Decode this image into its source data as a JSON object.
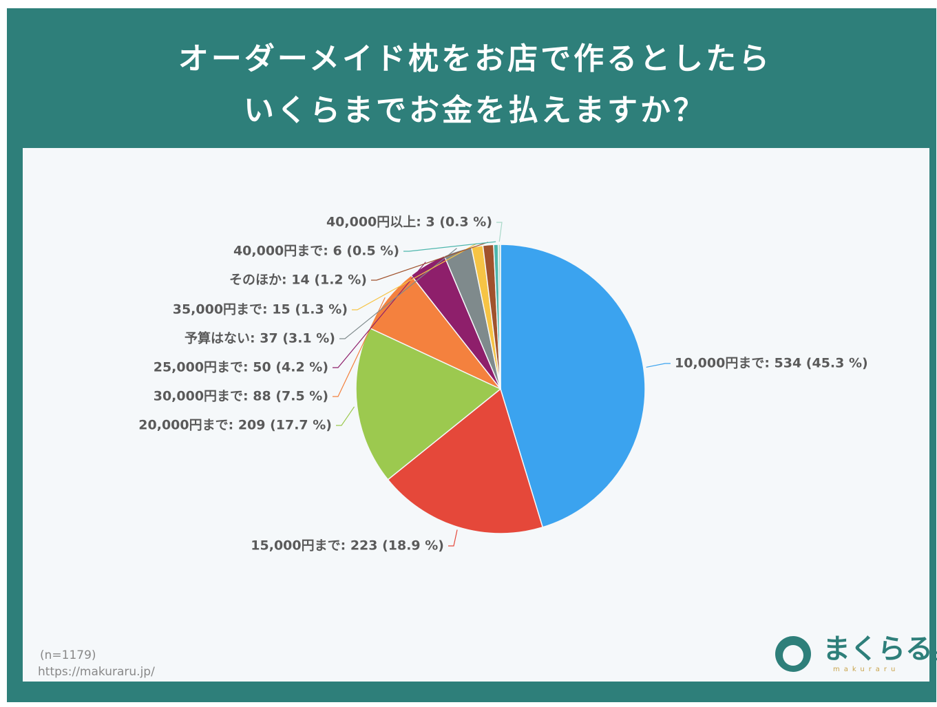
{
  "chart_data": {
    "type": "pie",
    "title": [
      "オーダーメイド枕をお店で作るとしたら",
      "いくらまでお金を払えますか？"
    ],
    "categories": [
      "10,000円まで",
      "15,000円まで",
      "20,000円まで",
      "30,000円まで",
      "25,000円まで",
      "予算はない",
      "35,000円まで",
      "そのほか",
      "40,000円まで",
      "40,000円以上"
    ],
    "values": [
      534,
      223,
      209,
      88,
      50,
      37,
      15,
      14,
      6,
      3
    ],
    "value_labels": [
      "10,000円まで: 534 (45.3 %)",
      "15,000円まで: 223 (18.9 %)",
      "20,000円まで: 209 (17.7 %)",
      "30,000円まで: 88 (7.5 %)",
      "25,000円まで: 50 (4.2 %)",
      "予算はない: 37 (3.1 %)",
      "35,000円まで: 15 (1.3 %)",
      "そのほか: 14 (1.2 %)",
      "40,000円まで: 6 (0.5 %)",
      "40,000円以上: 3 (0.3 %)"
    ],
    "colors": [
      "#3ba3ef",
      "#e5483a",
      "#9cc94f",
      "#f4813e",
      "#8e1f6b",
      "#7f8a8c",
      "#f6c445",
      "#a0522d",
      "#4db6ac",
      "#a8d8c8"
    ],
    "notes": [
      "(n=1179)",
      "https://makuraru.jp/"
    ],
    "logo": {
      "text": "まくらる。",
      "subtext": "makuraru"
    }
  }
}
